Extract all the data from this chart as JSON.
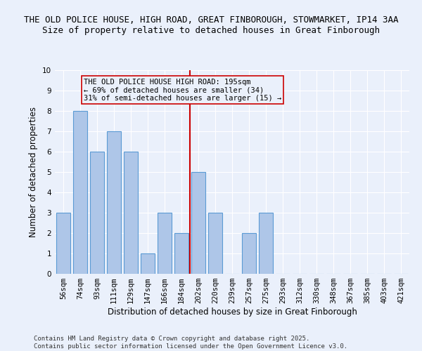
{
  "title_line1": "THE OLD POLICE HOUSE, HIGH ROAD, GREAT FINBOROUGH, STOWMARKET, IP14 3AA",
  "title_line2": "Size of property relative to detached houses in Great Finborough",
  "xlabel": "Distribution of detached houses by size in Great Finborough",
  "ylabel": "Number of detached properties",
  "categories": [
    "56sqm",
    "74sqm",
    "93sqm",
    "111sqm",
    "129sqm",
    "147sqm",
    "166sqm",
    "184sqm",
    "202sqm",
    "220sqm",
    "239sqm",
    "257sqm",
    "275sqm",
    "293sqm",
    "312sqm",
    "330sqm",
    "348sqm",
    "367sqm",
    "385sqm",
    "403sqm",
    "421sqm"
  ],
  "values": [
    3,
    8,
    6,
    7,
    6,
    1,
    3,
    2,
    5,
    3,
    0,
    2,
    3,
    0,
    0,
    0,
    0,
    0,
    0,
    0,
    0
  ],
  "bar_color": "#aec6e8",
  "bar_edge_color": "#5b9bd5",
  "bar_width": 0.8,
  "ylim": [
    0,
    10
  ],
  "yticks": [
    0,
    1,
    2,
    3,
    4,
    5,
    6,
    7,
    8,
    9,
    10
  ],
  "vline_index": 8,
  "vline_color": "#cc0000",
  "annotation_text": "THE OLD POLICE HOUSE HIGH ROAD: 195sqm\n← 69% of detached houses are smaller (34)\n31% of semi-detached houses are larger (15) →",
  "annotation_box_color": "#cc0000",
  "footer_text": "Contains HM Land Registry data © Crown copyright and database right 2025.\nContains public sector information licensed under the Open Government Licence v3.0.",
  "background_color": "#eaf0fb",
  "grid_color": "#ffffff",
  "title1_fontsize": 9.0,
  "title2_fontsize": 9.0,
  "axis_label_fontsize": 8.5,
  "tick_fontsize": 7.5,
  "annotation_fontsize": 7.5,
  "footer_fontsize": 6.5
}
